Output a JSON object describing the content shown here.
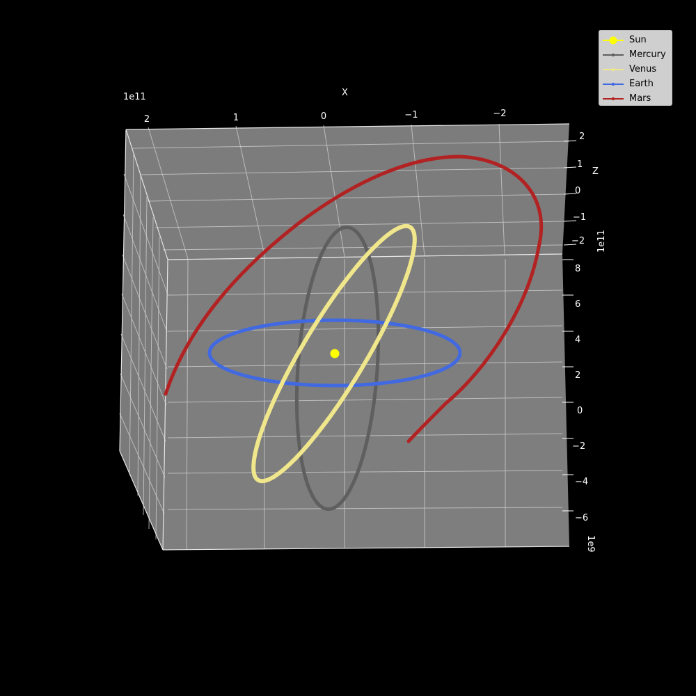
{
  "chart_data": {
    "type": "line",
    "projection": "3d",
    "xlabel": "X",
    "zlabel": "Z",
    "x_offset_label": "1e11",
    "y_offset_label": "1e11",
    "z_offset_label": "1e9",
    "x_ticks": [
      "2",
      "1",
      "0",
      "−1",
      "−2"
    ],
    "y_ticks": [
      "2",
      "1",
      "0",
      "−1",
      "−2"
    ],
    "z_ticks": [
      "8",
      "6",
      "4",
      "2",
      "0",
      "−2",
      "−4",
      "−6"
    ],
    "grid": true,
    "legend_position": "top-right",
    "series": [
      {
        "name": "Sun",
        "color": "#ffff00",
        "marker": "dot"
      },
      {
        "name": "Mercury",
        "color": "#5f5f5f",
        "marker": "line"
      },
      {
        "name": "Venus",
        "color": "#f0e68c",
        "marker": "line"
      },
      {
        "name": "Earth",
        "color": "#4169e1",
        "marker": "line"
      },
      {
        "name": "Mars",
        "color": "#b22222",
        "marker": "line"
      }
    ],
    "pane_color": "#808080",
    "background": "#000000"
  }
}
